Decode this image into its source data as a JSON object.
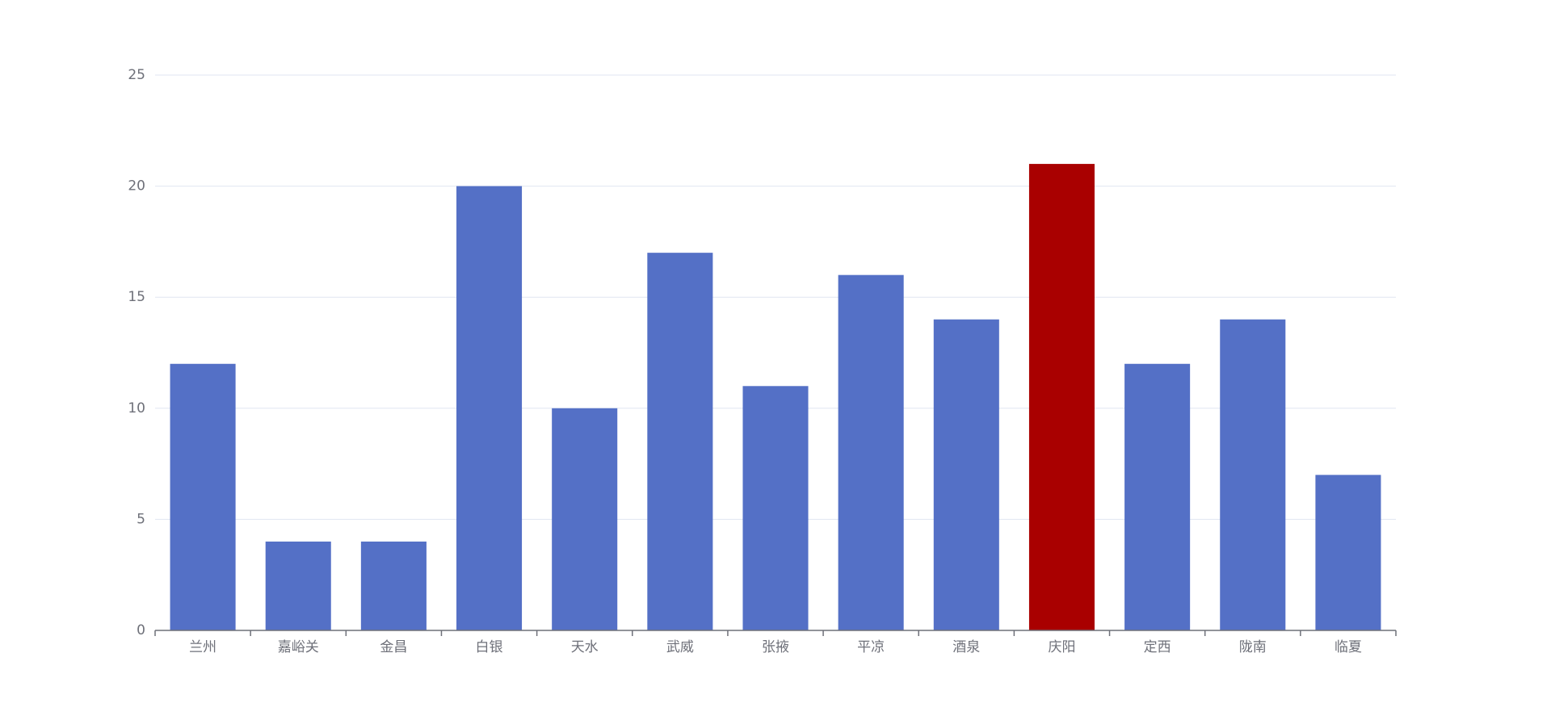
{
  "chart_data": {
    "type": "bar",
    "categories": [
      "兰州",
      "嘉峪关",
      "金昌",
      "白银",
      "天水",
      "武威",
      "张掖",
      "平凉",
      "酒泉",
      "庆阳",
      "定西",
      "陇南",
      "临夏"
    ],
    "values": [
      12,
      4,
      4,
      20,
      10,
      17,
      11,
      16,
      14,
      21,
      12,
      14,
      7
    ],
    "colors": [
      "#5470c6",
      "#5470c6",
      "#5470c6",
      "#5470c6",
      "#5470c6",
      "#5470c6",
      "#5470c6",
      "#5470c6",
      "#5470c6",
      "#a90000",
      "#5470c6",
      "#5470c6",
      "#5470c6"
    ],
    "ylim": [
      0,
      25
    ],
    "yticks": [
      0,
      5,
      10,
      15,
      20,
      25
    ],
    "grid": true
  }
}
